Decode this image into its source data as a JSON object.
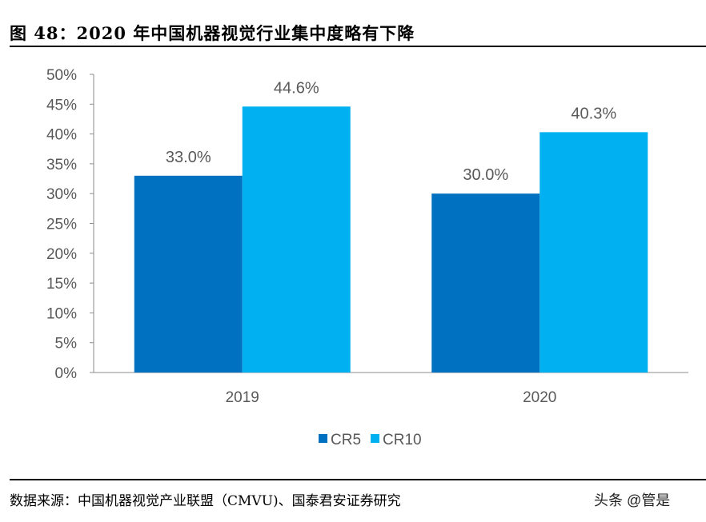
{
  "header": {
    "title": "图 48：2020 年中国机器视觉行业集中度略有下降"
  },
  "footer": {
    "source": "数据来源：中国机器视觉产业联盟（CMVU)、国泰君安证券研究",
    "watermark": "头条 @管是"
  },
  "chart_data": {
    "type": "bar",
    "categories": [
      "2019",
      "2020"
    ],
    "series": [
      {
        "name": "CR5",
        "values": [
          33.0,
          30.0
        ],
        "labels": [
          "33.0%",
          "30.0%"
        ],
        "color": "#0070C0"
      },
      {
        "name": "CR10",
        "values": [
          44.6,
          40.3
        ],
        "labels": [
          "44.6%",
          "40.3%"
        ],
        "color": "#00B0F0"
      }
    ],
    "ylim": [
      0,
      50
    ],
    "yticks": [
      "0%",
      "5%",
      "10%",
      "15%",
      "20%",
      "25%",
      "30%",
      "35%",
      "40%",
      "45%",
      "50%"
    ],
    "grid": false,
    "legend": "bottom"
  }
}
